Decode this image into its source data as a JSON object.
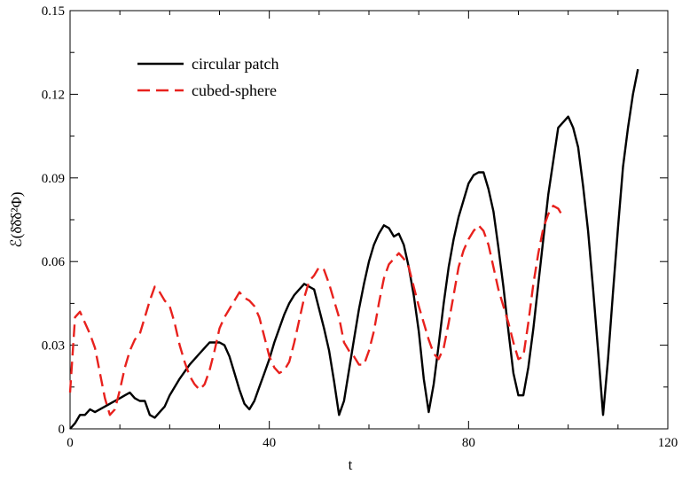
{
  "chart_data": {
    "type": "line",
    "xlabel": "t",
    "ylabel": "ℰ(δ̄δ̄δ²Φ)",
    "xlim": [
      0,
      120
    ],
    "ylim": [
      0,
      0.15
    ],
    "x_ticks": [
      0,
      40,
      80,
      120
    ],
    "x_tick_labels": [
      "0",
      "40",
      "80",
      "120"
    ],
    "y_ticks": [
      0,
      0.03,
      0.06,
      0.09,
      0.12,
      0.15
    ],
    "y_tick_labels": [
      "0",
      "0.03",
      "0.06",
      "0.09",
      "0.12",
      "0.15"
    ],
    "grid": false,
    "legend_position": "top-left",
    "series": [
      {
        "name": "circular patch",
        "color": "#000000",
        "dash": "solid",
        "points": [
          [
            0,
            0.0
          ],
          [
            1,
            0.002
          ],
          [
            2,
            0.005
          ],
          [
            3,
            0.005
          ],
          [
            4,
            0.007
          ],
          [
            5,
            0.006
          ],
          [
            7,
            0.008
          ],
          [
            8,
            0.009
          ],
          [
            9,
            0.01
          ],
          [
            10,
            0.011
          ],
          [
            11,
            0.012
          ],
          [
            12,
            0.013
          ],
          [
            13,
            0.011
          ],
          [
            14,
            0.01
          ],
          [
            15,
            0.01
          ],
          [
            16,
            0.005
          ],
          [
            17,
            0.004
          ],
          [
            18,
            0.006
          ],
          [
            19,
            0.008
          ],
          [
            20,
            0.012
          ],
          [
            22,
            0.018
          ],
          [
            24,
            0.023
          ],
          [
            26,
            0.027
          ],
          [
            27,
            0.029
          ],
          [
            28,
            0.031
          ],
          [
            29,
            0.031
          ],
          [
            30,
            0.031
          ],
          [
            31,
            0.03
          ],
          [
            32,
            0.026
          ],
          [
            33,
            0.02
          ],
          [
            34,
            0.014
          ],
          [
            35,
            0.009
          ],
          [
            36,
            0.007
          ],
          [
            37,
            0.01
          ],
          [
            38,
            0.015
          ],
          [
            39,
            0.02
          ],
          [
            40,
            0.025
          ],
          [
            41,
            0.031
          ],
          [
            42,
            0.036
          ],
          [
            43,
            0.041
          ],
          [
            44,
            0.045
          ],
          [
            45,
            0.048
          ],
          [
            46,
            0.05
          ],
          [
            47,
            0.052
          ],
          [
            48,
            0.051
          ],
          [
            49,
            0.05
          ],
          [
            50,
            0.043
          ],
          [
            51,
            0.036
          ],
          [
            52,
            0.028
          ],
          [
            53,
            0.017
          ],
          [
            54,
            0.005
          ],
          [
            55,
            0.01
          ],
          [
            56,
            0.021
          ],
          [
            57,
            0.032
          ],
          [
            58,
            0.043
          ],
          [
            59,
            0.052
          ],
          [
            60,
            0.06
          ],
          [
            61,
            0.066
          ],
          [
            62,
            0.07
          ],
          [
            63,
            0.073
          ],
          [
            64,
            0.072
          ],
          [
            65,
            0.069
          ],
          [
            66,
            0.07
          ],
          [
            67,
            0.066
          ],
          [
            68,
            0.058
          ],
          [
            69,
            0.048
          ],
          [
            70,
            0.035
          ],
          [
            71,
            0.018
          ],
          [
            72,
            0.006
          ],
          [
            73,
            0.016
          ],
          [
            74,
            0.03
          ],
          [
            75,
            0.045
          ],
          [
            76,
            0.058
          ],
          [
            77,
            0.068
          ],
          [
            78,
            0.076
          ],
          [
            79,
            0.082
          ],
          [
            80,
            0.088
          ],
          [
            81,
            0.091
          ],
          [
            82,
            0.092
          ],
          [
            83,
            0.092
          ],
          [
            84,
            0.086
          ],
          [
            85,
            0.078
          ],
          [
            86,
            0.065
          ],
          [
            87,
            0.051
          ],
          [
            88,
            0.035
          ],
          [
            89,
            0.02
          ],
          [
            90,
            0.012
          ],
          [
            91,
            0.012
          ],
          [
            92,
            0.022
          ],
          [
            93,
            0.036
          ],
          [
            94,
            0.052
          ],
          [
            95,
            0.068
          ],
          [
            96,
            0.084
          ],
          [
            97,
            0.096
          ],
          [
            98,
            0.108
          ],
          [
            99,
            0.11
          ],
          [
            100,
            0.112
          ],
          [
            101,
            0.108
          ],
          [
            102,
            0.101
          ],
          [
            103,
            0.087
          ],
          [
            104,
            0.071
          ],
          [
            105,
            0.05
          ],
          [
            106,
            0.028
          ],
          [
            107,
            0.005
          ],
          [
            108,
            0.025
          ],
          [
            109,
            0.049
          ],
          [
            110,
            0.072
          ],
          [
            111,
            0.094
          ],
          [
            112,
            0.108
          ],
          [
            113,
            0.12
          ],
          [
            114,
            0.129
          ]
        ]
      },
      {
        "name": "cubed-sphere",
        "color": "#e8211d",
        "dash": "dashed",
        "points": [
          [
            0,
            0.013
          ],
          [
            1,
            0.04
          ],
          [
            2,
            0.042
          ],
          [
            3,
            0.038
          ],
          [
            4,
            0.034
          ],
          [
            5,
            0.029
          ],
          [
            6,
            0.02
          ],
          [
            7,
            0.011
          ],
          [
            8,
            0.005
          ],
          [
            9,
            0.007
          ],
          [
            10,
            0.014
          ],
          [
            11,
            0.022
          ],
          [
            12,
            0.028
          ],
          [
            13,
            0.032
          ],
          [
            14,
            0.034
          ],
          [
            15,
            0.04
          ],
          [
            16,
            0.046
          ],
          [
            17,
            0.051
          ],
          [
            18,
            0.049
          ],
          [
            19,
            0.046
          ],
          [
            20,
            0.044
          ],
          [
            21,
            0.038
          ],
          [
            22,
            0.03
          ],
          [
            23,
            0.024
          ],
          [
            24,
            0.019
          ],
          [
            25,
            0.016
          ],
          [
            26,
            0.014
          ],
          [
            27,
            0.016
          ],
          [
            28,
            0.021
          ],
          [
            29,
            0.028
          ],
          [
            30,
            0.036
          ],
          [
            31,
            0.04
          ],
          [
            32,
            0.043
          ],
          [
            33,
            0.046
          ],
          [
            34,
            0.049
          ],
          [
            35,
            0.047
          ],
          [
            36,
            0.046
          ],
          [
            37,
            0.044
          ],
          [
            38,
            0.04
          ],
          [
            39,
            0.033
          ],
          [
            40,
            0.026
          ],
          [
            41,
            0.022
          ],
          [
            42,
            0.02
          ],
          [
            43,
            0.021
          ],
          [
            44,
            0.024
          ],
          [
            45,
            0.031
          ],
          [
            46,
            0.039
          ],
          [
            47,
            0.047
          ],
          [
            48,
            0.053
          ],
          [
            49,
            0.055
          ],
          [
            50,
            0.058
          ],
          [
            51,
            0.057
          ],
          [
            52,
            0.052
          ],
          [
            53,
            0.046
          ],
          [
            54,
            0.04
          ],
          [
            55,
            0.031
          ],
          [
            56,
            0.028
          ],
          [
            57,
            0.026
          ],
          [
            58,
            0.023
          ],
          [
            59,
            0.023
          ],
          [
            60,
            0.028
          ],
          [
            61,
            0.035
          ],
          [
            62,
            0.045
          ],
          [
            63,
            0.054
          ],
          [
            64,
            0.059
          ],
          [
            65,
            0.061
          ],
          [
            66,
            0.063
          ],
          [
            67,
            0.061
          ],
          [
            68,
            0.058
          ],
          [
            69,
            0.051
          ],
          [
            70,
            0.044
          ],
          [
            71,
            0.038
          ],
          [
            72,
            0.032
          ],
          [
            73,
            0.027
          ],
          [
            74,
            0.025
          ],
          [
            75,
            0.029
          ],
          [
            76,
            0.038
          ],
          [
            77,
            0.048
          ],
          [
            78,
            0.058
          ],
          [
            79,
            0.064
          ],
          [
            80,
            0.068
          ],
          [
            81,
            0.071
          ],
          [
            82,
            0.073
          ],
          [
            83,
            0.071
          ],
          [
            84,
            0.066
          ],
          [
            85,
            0.058
          ],
          [
            86,
            0.05
          ],
          [
            87,
            0.044
          ],
          [
            88,
            0.038
          ],
          [
            89,
            0.031
          ],
          [
            90,
            0.025
          ],
          [
            91,
            0.026
          ],
          [
            92,
            0.038
          ],
          [
            93,
            0.052
          ],
          [
            94,
            0.063
          ],
          [
            95,
            0.072
          ],
          [
            96,
            0.077
          ],
          [
            97,
            0.08
          ],
          [
            98,
            0.079
          ],
          [
            99,
            0.076
          ]
        ]
      }
    ]
  }
}
